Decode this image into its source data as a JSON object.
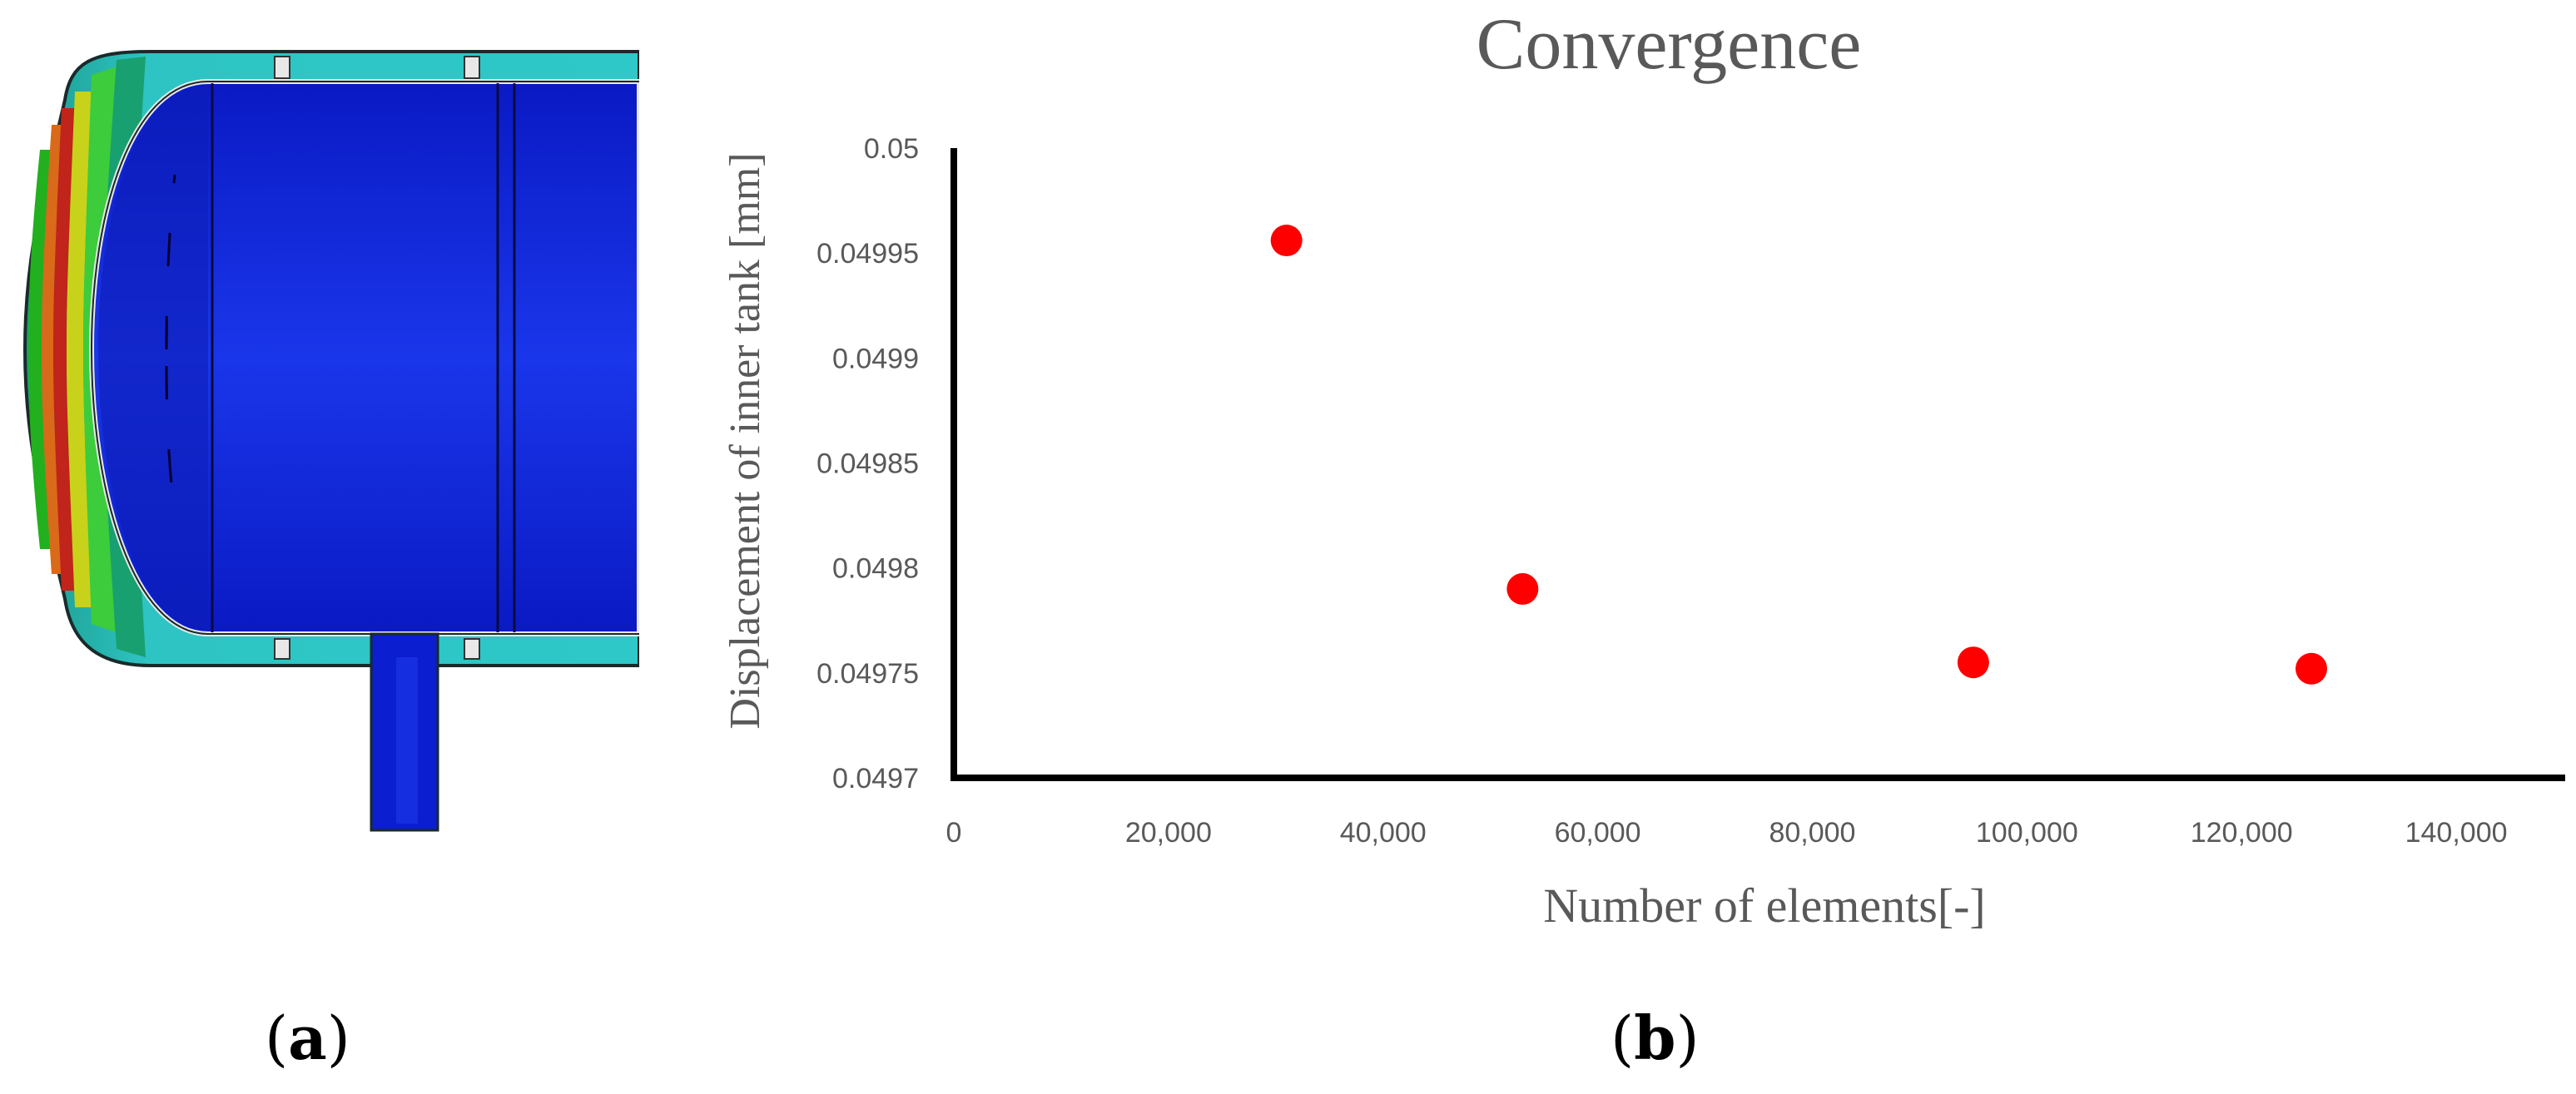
{
  "figure": {
    "panel_a_label_letter": "a",
    "panel_b_label_letter": "b"
  },
  "colors": {
    "tank_blue": "#0b1ed0",
    "tank_blue_light": "#1a34e6",
    "shell_teal": "#2ec4c4",
    "shell_outline": "#1a2a2a",
    "contour_red": "#c0241a",
    "contour_orange": "#d96a1a",
    "contour_yellow": "#c8d21a",
    "contour_green": "#22b01e",
    "contour_teal": "#18a070",
    "marker_red": "#ff0000",
    "axis_black": "#000000",
    "title_gray": "#595959",
    "tick_gray": "#595959"
  },
  "chart_data": {
    "type": "scatter",
    "title": "Convergence",
    "xlabel": "Number of elements[-]",
    "ylabel": "Displacement of inner tank [mm]",
    "xlim": [
      0,
      150000
    ],
    "ylim": [
      0.0497,
      0.05
    ],
    "x_ticks": [
      0,
      20000,
      40000,
      60000,
      80000,
      100000,
      120000,
      140000
    ],
    "x_tick_labels": [
      "0",
      "20,000",
      "40,000",
      "60,000",
      "80,000",
      "100,000",
      "120,000",
      "140,000"
    ],
    "y_ticks": [
      0.0497,
      0.04975,
      0.0498,
      0.04985,
      0.0499,
      0.04995,
      0.05
    ],
    "y_tick_labels": [
      "0.0497",
      "0.04975",
      "0.0498",
      "0.04985",
      "0.0499",
      "0.04995",
      "0.05"
    ],
    "grid": false,
    "legend": "none",
    "series": [
      {
        "x": [
          31000,
          53000,
          95000,
          126500
        ],
        "y": [
          0.049956,
          0.04979,
          0.049755,
          0.049752
        ]
      }
    ]
  }
}
